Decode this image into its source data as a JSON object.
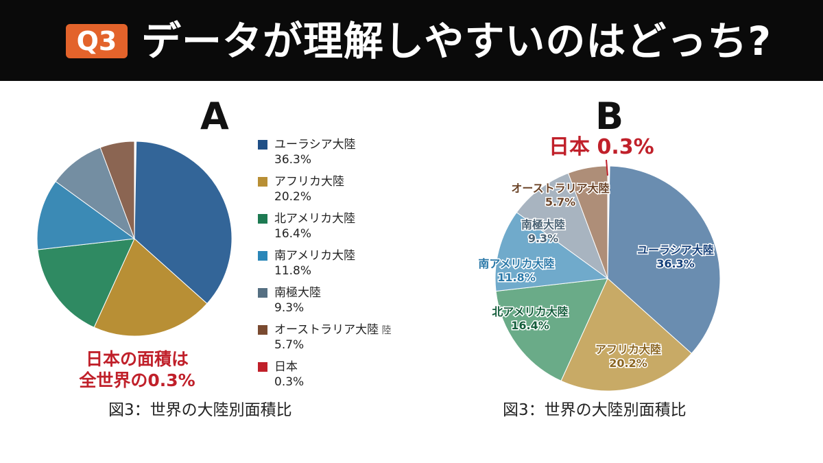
{
  "header": {
    "badge": "Q3",
    "title": "データが理解しやすいのはどっち?"
  },
  "panel_a": {
    "letter": "A",
    "note_line1": "日本の面積は",
    "note_line2": "全世界の0.3%",
    "caption": "図3：世界の大陸別面積比",
    "legend_extra_glyph": "陸"
  },
  "panel_b": {
    "letter": "B",
    "japan_callout": "日本 0.3%",
    "caption": "図3：世界の大陸別面積比"
  },
  "chart_data": [
    {
      "type": "pie",
      "title": "",
      "legend": "right",
      "categories": [
        "ユーラシア大陸",
        "アフリカ大陸",
        "北アメリカ大陸",
        "南アメリカ大陸",
        "南極大陸",
        "オーストラリア大陸",
        "日本"
      ],
      "labels": [
        "36.3%",
        "20.2%",
        "16.4%",
        "11.8%",
        "9.3%",
        "5.7%",
        "0.3%"
      ],
      "values": [
        36.3,
        20.2,
        16.4,
        11.8,
        9.3,
        5.7,
        0.3
      ],
      "colors": [
        "#336598",
        "#b88f35",
        "#2f8a62",
        "#3b8ab5",
        "#748ea2",
        "#8b6552",
        "#c0202a"
      ],
      "legend_colors": [
        "#1f4f86",
        "#b88f35",
        "#1d7a52",
        "#2a86b8",
        "#556f82",
        "#7a4a30",
        "#c0202a"
      ]
    },
    {
      "type": "pie",
      "title": "",
      "legend": "none",
      "categories": [
        "ユーラシア大陸",
        "アフリカ大陸",
        "北アメリカ大陸",
        "南アメリカ大陸",
        "南極大陸",
        "オーストラリア大陸",
        "日本"
      ],
      "labels": [
        "36.3%",
        "20.2%",
        "16.4%",
        "11.8%",
        "9.3%",
        "5.7%",
        "0.3%"
      ],
      "values": [
        36.3,
        20.2,
        16.4,
        11.8,
        9.3,
        5.7,
        0.3
      ],
      "colors": [
        "#6a8db0",
        "#c8aa66",
        "#6aab88",
        "#70aacb",
        "#a8b4c0",
        "#ae8e78",
        "#c0202a"
      ],
      "label_colors": [
        "#15407a",
        "#8a6420",
        "#155e3c",
        "#2a78a8",
        "#4a6274",
        "#6b4428",
        "#c0202a"
      ]
    }
  ]
}
